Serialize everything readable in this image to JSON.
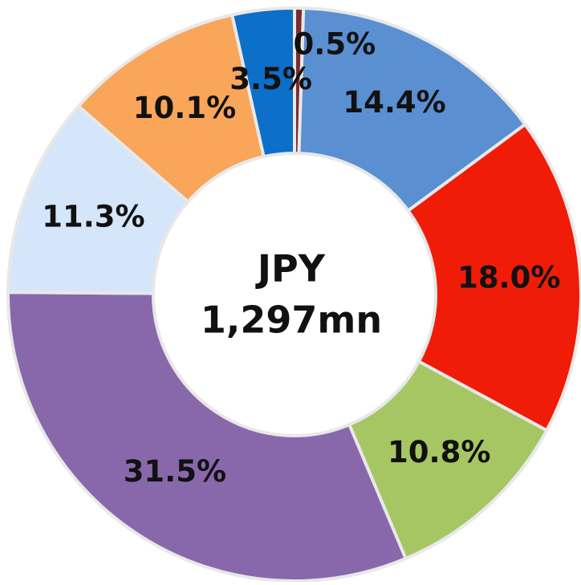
{
  "chart_data": {
    "type": "donut",
    "center_label": [
      "JPY",
      "1,297mn"
    ],
    "values": [
      0.5,
      14.4,
      18.0,
      10.8,
      31.5,
      11.3,
      10.1,
      3.5
    ],
    "value_labels": [
      "0.5%",
      "14.4%",
      "18.0%",
      "10.8%",
      "31.5%",
      "11.3%",
      "10.1%",
      "3.5%"
    ],
    "colors": [
      "#7b2c2c",
      "#5a8fd2",
      "#f01c08",
      "#a6c664",
      "#8868ab",
      "#d5e5fa",
      "#f9a55a",
      "#0c6fc8"
    ]
  }
}
